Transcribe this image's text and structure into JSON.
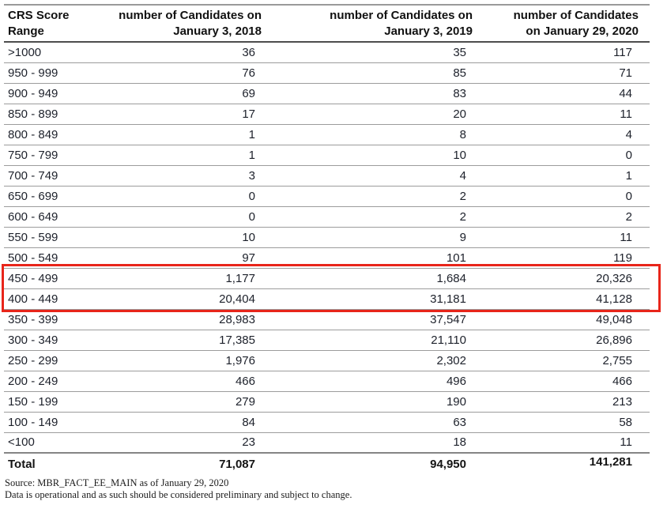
{
  "table": {
    "headers": [
      {
        "line1": "CRS Score",
        "line2": "Range"
      },
      {
        "line1": "number of Candidates on",
        "line2": "January 3, 2018"
      },
      {
        "line1": "number of Candidates on",
        "line2": "January 3, 2019"
      },
      {
        "line1": "number of Candidates",
        "line2": "on January 29, 2020"
      }
    ],
    "rows": [
      {
        "range": ">1000",
        "values": [
          "36",
          "35",
          "117"
        ]
      },
      {
        "range": "950 - 999",
        "values": [
          "76",
          "85",
          "71"
        ]
      },
      {
        "range": "900 - 949",
        "values": [
          "69",
          "83",
          "44"
        ]
      },
      {
        "range": "850 - 899",
        "values": [
          "17",
          "20",
          "11"
        ]
      },
      {
        "range": "800 - 849",
        "values": [
          "1",
          "8",
          "4"
        ]
      },
      {
        "range": "750 - 799",
        "values": [
          "1",
          "10",
          "0"
        ]
      },
      {
        "range": "700 - 749",
        "values": [
          "3",
          "4",
          "1"
        ]
      },
      {
        "range": "650 - 699",
        "values": [
          "0",
          "2",
          "0"
        ]
      },
      {
        "range": "600 - 649",
        "values": [
          "0",
          "2",
          "2"
        ]
      },
      {
        "range": "550 - 599",
        "values": [
          "10",
          "9",
          "11"
        ]
      },
      {
        "range": "500 - 549",
        "values": [
          "97",
          "101",
          "119"
        ]
      },
      {
        "range": "450 - 499",
        "values": [
          "1,177",
          "1,684",
          "20,326"
        ],
        "highlighted": true
      },
      {
        "range": "400 - 449",
        "values": [
          "20,404",
          "31,181",
          "41,128"
        ],
        "highlighted": true
      },
      {
        "range": "350 - 399",
        "values": [
          "28,983",
          "37,547",
          "49,048"
        ]
      },
      {
        "range": "300 - 349",
        "values": [
          "17,385",
          "21,110",
          "26,896"
        ]
      },
      {
        "range": "250 - 299",
        "values": [
          "1,976",
          "2,302",
          "2,755"
        ]
      },
      {
        "range": "200 - 249",
        "values": [
          "466",
          "496",
          "466"
        ]
      },
      {
        "range": "150 - 199",
        "values": [
          "279",
          "190",
          "213"
        ]
      },
      {
        "range": "100 - 149",
        "values": [
          "84",
          "63",
          "58"
        ]
      },
      {
        "range": "<100",
        "values": [
          "23",
          "18",
          "11"
        ]
      }
    ],
    "total": {
      "label": "Total",
      "values": [
        "71,087",
        "94,950",
        "141,281"
      ]
    }
  },
  "highlight": {
    "color": "#e8251a",
    "rows": [
      "450 - 499",
      "400 - 449"
    ]
  },
  "footnotes": {
    "source": "Source: MBR_FACT_EE_MAIN as of January 29, 2020",
    "disclaimer": "Data is operational and as such should be considered preliminary and subject to change."
  }
}
